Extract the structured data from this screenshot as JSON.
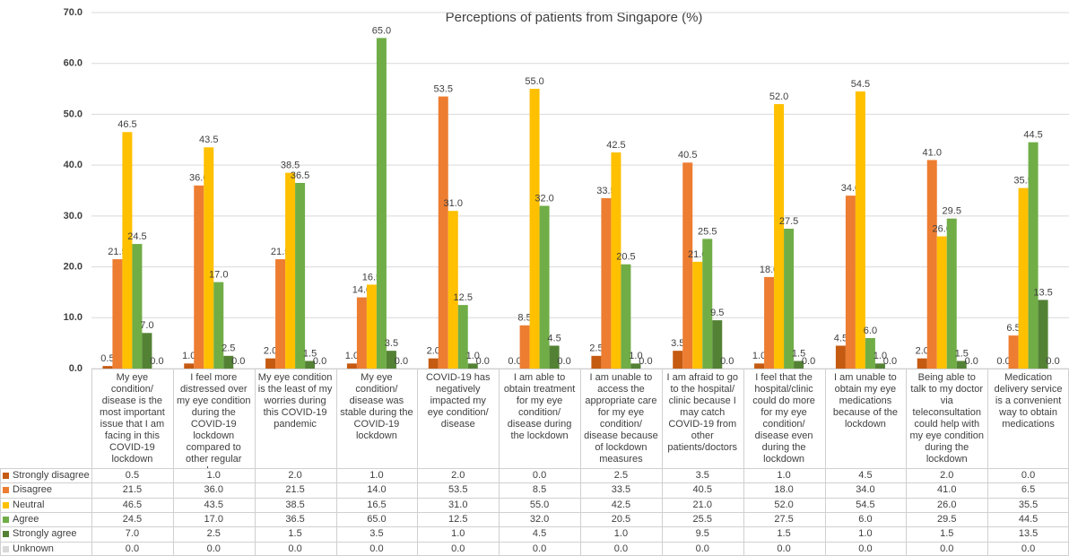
{
  "chart_data": {
    "type": "bar",
    "title": "Perceptions of patients from Singapore (%)",
    "categories": [
      "My eye condition/ disease is the most important issue that I am facing in this COVID-19 lockdown",
      "I feel more distressed over my eye condition during the COVID-19 lockdown compared to other regular days",
      "My eye condition is the least of my worries during this COVID-19 pandemic",
      "My eye condition/ disease was stable during the COVID-19 lockdown",
      "COVID-19 has negatively impacted my eye condition/ disease",
      "I am able to obtain treatment for my eye condition/ disease during the lockdown",
      "I am unable to access the appropriate care for my eye condition/ disease because of lockdown measures",
      "I am afraid to go to the hospital/ clinic because I may catch COVID-19 from other patients/doctors",
      "I feel that the hospital/clinic could do more for my eye condition/ disease even during the lockdown",
      "I am unable to obtain my eye medications because of the lockdown",
      "Being able to talk to my doctor via teleconsultation could help with my eye condition during the lockdown",
      "Medication delivery service is a convenient way to obtain medications"
    ],
    "series": [
      {
        "name": "Strongly disagree",
        "color": "#c55a11",
        "values": [
          0.5,
          1,
          2,
          1,
          2,
          0,
          2.5,
          3.5,
          1,
          4.5,
          2,
          0
        ],
        "value_labels": [
          "0.5",
          "1.0",
          "2.0",
          "1.0",
          "2.0",
          "0.0",
          "2.5",
          "3.5",
          "1.0",
          "4.5",
          "2.0",
          "0.0"
        ]
      },
      {
        "name": "Disagree",
        "color": "#ed7d31",
        "values": [
          21.5,
          36,
          21.5,
          14,
          53.5,
          8.5,
          33.5,
          40.5,
          18,
          34,
          41,
          6.5
        ],
        "value_labels": [
          "21.5",
          "36.0",
          "21.5",
          "14.0",
          "53.5",
          "8.5",
          "33.5",
          "40.5",
          "18.0",
          "34.0",
          "41.0",
          "6.5"
        ]
      },
      {
        "name": "Neutral",
        "color": "#ffc000",
        "values": [
          46.5,
          43.5,
          38.5,
          16.5,
          31,
          55,
          42.5,
          21,
          52,
          54.5,
          26,
          35.5
        ],
        "value_labels": [
          "46.5",
          "43.5",
          "38.5",
          "16.5",
          "31.0",
          "55.0",
          "42.5",
          "21.0",
          "52.0",
          "54.5",
          "26.0",
          "35.5"
        ]
      },
      {
        "name": "Agree",
        "color": "#70ad47",
        "values": [
          24.5,
          17,
          36.5,
          65,
          12.5,
          32,
          20.5,
          25.5,
          27.5,
          6,
          29.5,
          44.5
        ],
        "value_labels": [
          "24.5",
          "17.0",
          "36.5",
          "65.0",
          "12.5",
          "32.0",
          "20.5",
          "25.5",
          "27.5",
          "6.0",
          "29.5",
          "44.5"
        ]
      },
      {
        "name": "Strongly agree",
        "color": "#548235",
        "values": [
          7,
          2.5,
          1.5,
          3.5,
          1,
          4.5,
          1,
          9.5,
          1.5,
          1,
          1.5,
          13.5
        ],
        "value_labels": [
          "7.0",
          "2.5",
          "1.5",
          "3.5",
          "1.0",
          "4.5",
          "1.0",
          "9.5",
          "1.5",
          "1.0",
          "1.5",
          "13.5"
        ]
      },
      {
        "name": "Unknown",
        "color": "#d9d9d9",
        "values": [
          0,
          0,
          0,
          0,
          0,
          0,
          0,
          0,
          0,
          0,
          0,
          0
        ],
        "value_labels": [
          "0.0",
          "0.0",
          "0.0",
          "0.0",
          "0.0",
          "0.0",
          "0.0",
          "0.0",
          "0.0",
          "0.0",
          "0.0",
          "0.0"
        ]
      }
    ],
    "ylim": [
      0,
      70
    ],
    "yticks": [
      {
        "value": 0,
        "label": "0.0"
      },
      {
        "value": 10,
        "label": "10.0"
      },
      {
        "value": 20,
        "label": "20.0"
      },
      {
        "value": 30,
        "label": "30.0"
      },
      {
        "value": 40,
        "label": "40.0"
      },
      {
        "value": 50,
        "label": "50.0"
      },
      {
        "value": 60,
        "label": "60.0"
      },
      {
        "value": 70,
        "label": "70.0"
      }
    ],
    "grid": true
  }
}
